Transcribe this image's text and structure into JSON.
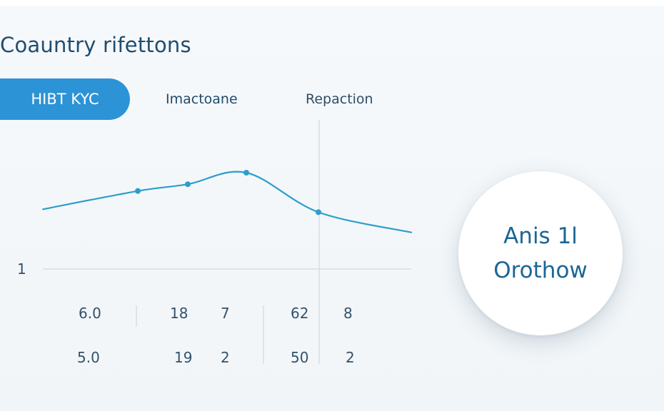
{
  "title": "Coauntry rifettons",
  "tabs": [
    {
      "label": "HIBT KYC",
      "active": true
    },
    {
      "label": "Imactoane",
      "active": false
    },
    {
      "label": "Repaction",
      "active": false
    }
  ],
  "chart_data": {
    "type": "line",
    "y_axis_label": "1",
    "series": [
      {
        "color": "#2c9ec9",
        "values": [
          0.62,
          0.81,
          0.88,
          1.0,
          0.59,
          0.38
        ],
        "markers": [
          false,
          true,
          true,
          true,
          true,
          false
        ]
      }
    ],
    "grid_lines": [
      {
        "value": 0
      }
    ]
  },
  "table": {
    "rows": [
      [
        "6.0",
        "18",
        "7",
        "62",
        "8"
      ],
      [
        "5.0",
        "19",
        "2",
        "50",
        "2"
      ]
    ]
  },
  "callout": {
    "line1": "Anis 1l",
    "line2": "Orothow"
  },
  "colors": {
    "accent": "#2c93d6",
    "line": "#2c9ec9",
    "title": "#1f4d70"
  }
}
